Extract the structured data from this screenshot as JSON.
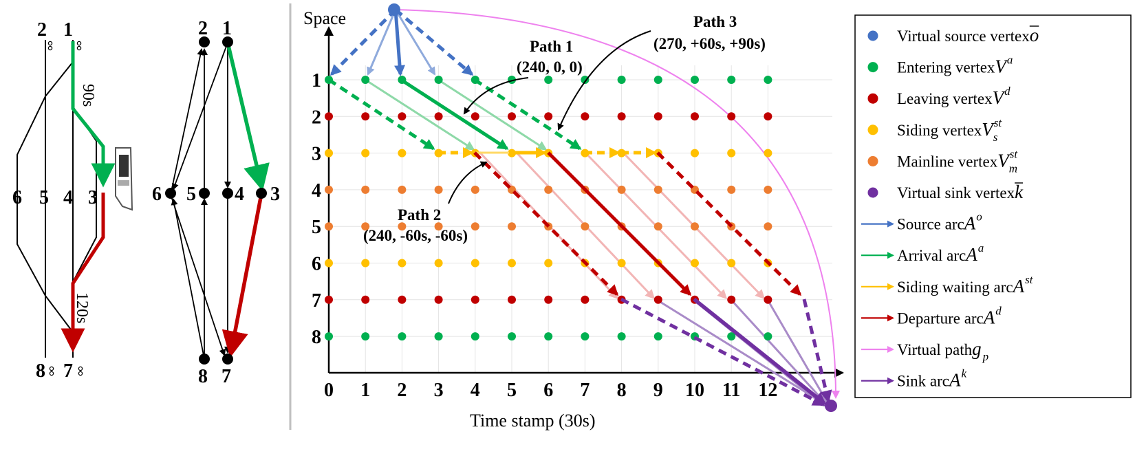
{
  "track_diagram": {
    "station_labels": [
      "1",
      "2",
      "3",
      "4",
      "5",
      "6",
      "7",
      "8"
    ],
    "arrive_time_label": "90s",
    "depart_time_label": "120s"
  },
  "graph_diagram": {
    "node_labels": [
      "1",
      "2",
      "3",
      "4",
      "5",
      "6",
      "7",
      "8"
    ]
  },
  "chart": {
    "ylabel": "Space",
    "xlabel": "Time stamp (30s)",
    "x_ticks": [
      "0",
      "1",
      "2",
      "3",
      "4",
      "5",
      "6",
      "7",
      "8",
      "9",
      "10",
      "11",
      "12"
    ],
    "y_ticks": [
      "1",
      "2",
      "3",
      "4",
      "5",
      "6",
      "7",
      "8"
    ],
    "paths": [
      {
        "name": "Path 1",
        "detail": "(240, 0, 0)"
      },
      {
        "name": "Path 2",
        "detail": "(240, -60s, -60s)"
      },
      {
        "name": "Path 3",
        "detail": "(270, +60s, +90s)"
      }
    ]
  },
  "legend": {
    "items": [
      {
        "label": "Virtual source vertex",
        "sym": "o",
        "sup": "",
        "sub": "",
        "over": true,
        "color": "#4472C4",
        "kind": "dot"
      },
      {
        "label": "Entering vertex",
        "sym": "V",
        "sup": "a",
        "sub": "",
        "over": false,
        "color": "#00B050",
        "kind": "dot"
      },
      {
        "label": "Leaving vertex",
        "sym": "V",
        "sup": "d",
        "sub": "",
        "over": false,
        "color": "#C00000",
        "kind": "dot"
      },
      {
        "label": "Siding vertex",
        "sym": "V",
        "sup": "st",
        "sub": "s",
        "over": false,
        "color": "#FFC000",
        "kind": "dot"
      },
      {
        "label": "Mainline vertex",
        "sym": "V",
        "sup": "st",
        "sub": "m",
        "over": false,
        "color": "#ED7D31",
        "kind": "dot"
      },
      {
        "label": "Virtual sink vertex",
        "sym": "k",
        "sup": "",
        "sub": "",
        "over": true,
        "color": "#7030A0",
        "kind": "dot"
      },
      {
        "label": "Source arc",
        "sym": "A",
        "sup": "o",
        "sub": "",
        "over": false,
        "color": "#4472C4",
        "kind": "arrow"
      },
      {
        "label": "Arrival arc",
        "sym": "A",
        "sup": "a",
        "sub": "",
        "over": false,
        "color": "#00B050",
        "kind": "arrow"
      },
      {
        "label": "Siding waiting arc",
        "sym": "A",
        "sup": "st",
        "sub": "",
        "over": false,
        "color": "#FFC000",
        "kind": "arrow"
      },
      {
        "label": "Departure arc",
        "sym": "A",
        "sup": "d",
        "sub": "",
        "over": false,
        "color": "#C00000",
        "kind": "arrow"
      },
      {
        "label": "Virtual path",
        "sym": "g",
        "sup": "",
        "sub": "p",
        "over": false,
        "color": "#EE82EE",
        "kind": "arrow"
      },
      {
        "label": "Sink arc",
        "sym": "A",
        "sup": "k",
        "sub": "",
        "over": false,
        "color": "#7030A0",
        "kind": "arrow"
      }
    ]
  }
}
